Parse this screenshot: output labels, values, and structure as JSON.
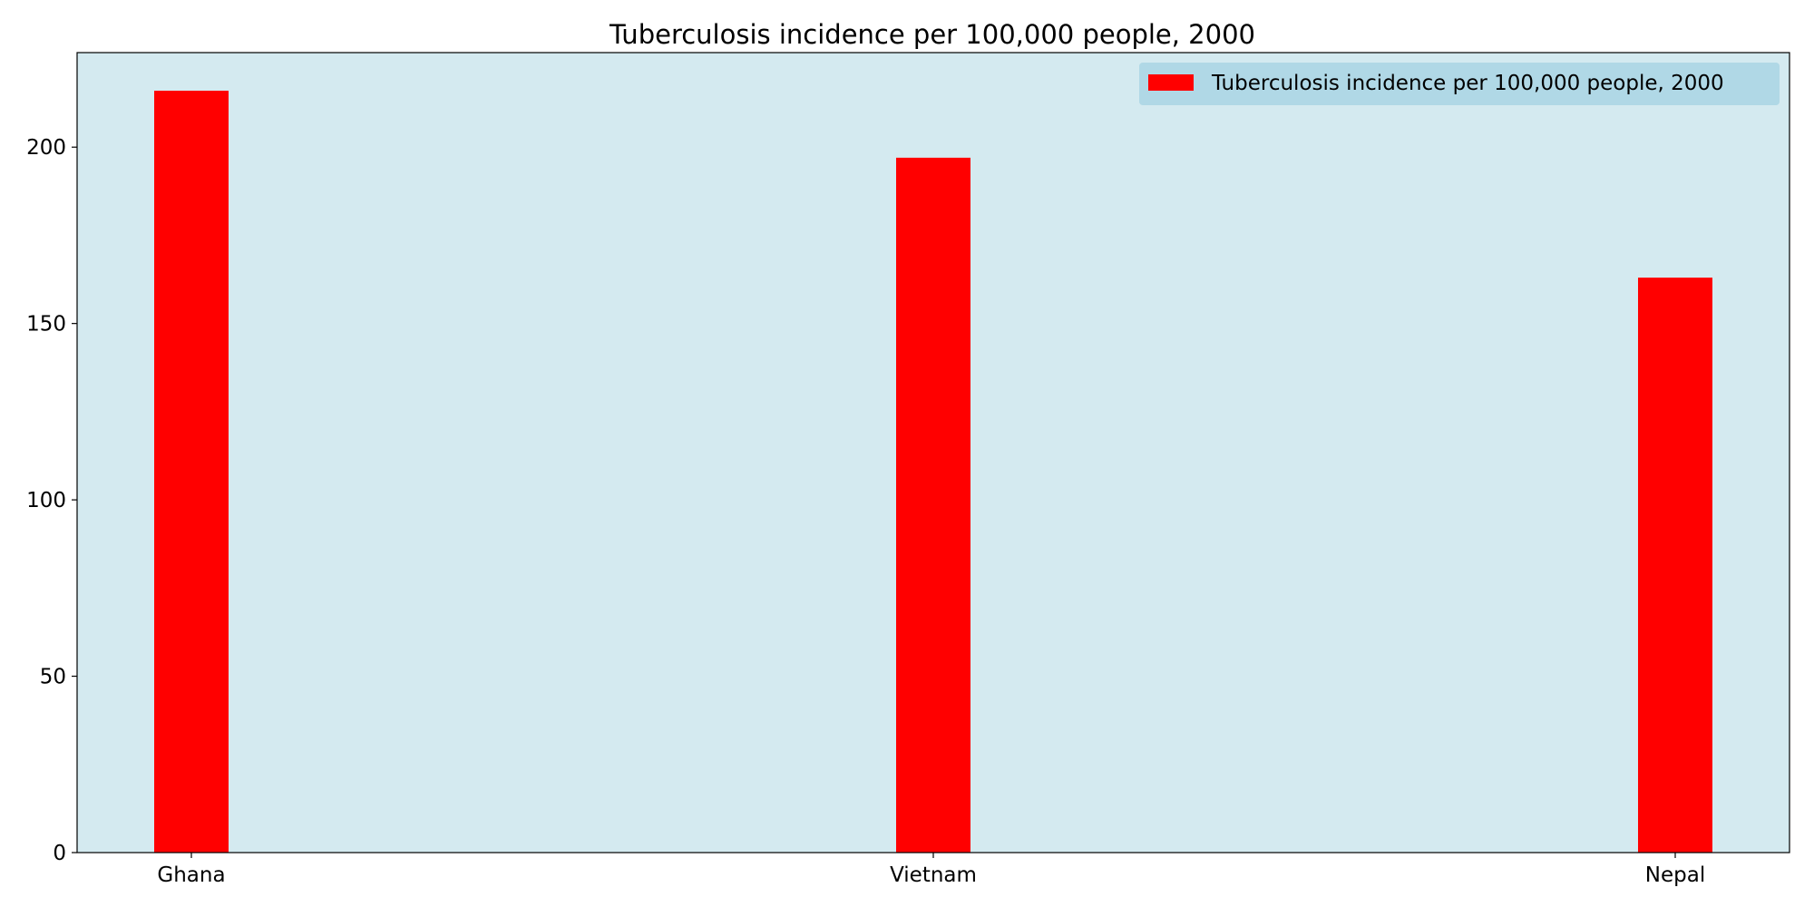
{
  "chart_data": {
    "type": "bar",
    "title": "Tuberculosis incidence per 100,000 people, 2000",
    "xlabel": "",
    "ylabel": "",
    "categories": [
      "Ghana",
      "Vietnam",
      "Nepal"
    ],
    "series": [
      {
        "name": "Tuberculosis incidence per 100,000 people, 2000",
        "values": [
          216,
          197,
          163
        ]
      }
    ],
    "ylim": [
      0,
      226.8
    ],
    "yticks": [
      0,
      50,
      100,
      150,
      200
    ],
    "grid": false,
    "legend_position": "top-right",
    "colors": {
      "bar": "#ff0000",
      "plot_background": "#d4eaf0",
      "legend_background": "#b0d8e6",
      "axis": "#000000"
    }
  }
}
